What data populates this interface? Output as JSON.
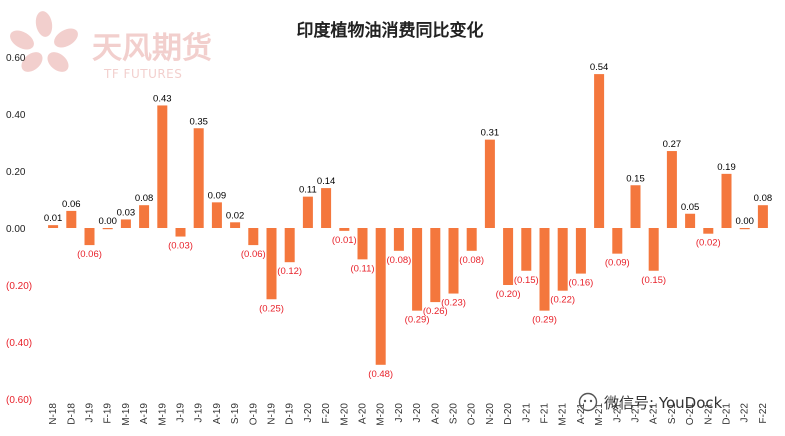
{
  "watermark": {
    "logo_cn": "天风期货",
    "logo_en": "TF FUTURES",
    "wechat": "微信号: YouDock"
  },
  "colors": {
    "bar": "#F4773D",
    "positive_label": "#000000",
    "negative_label": "#E8222B",
    "logo": "#E9A8A5"
  },
  "chart_data": {
    "type": "bar",
    "title": "印度植物油消费同比变化",
    "xlabel": "",
    "ylabel": "",
    "ylim": [
      -0.6,
      0.6
    ],
    "yticks": [
      "0.60",
      "0.40",
      "0.20",
      "0.00",
      "(0.20)",
      "(0.40)",
      "(0.60)"
    ],
    "grid": false,
    "categories": [
      "N-18",
      "D-18",
      "J-19",
      "F-19",
      "M-19",
      "A-19",
      "M-19",
      "J-19",
      "J-19",
      "A-19",
      "S-19",
      "O-19",
      "N-19",
      "D-19",
      "J-20",
      "F-20",
      "M-20",
      "A-20",
      "M-20",
      "J-20",
      "J-20",
      "A-20",
      "S-20",
      "O-20",
      "N-20",
      "D-20",
      "J-21",
      "F-21",
      "M-21",
      "A-21",
      "M-21",
      "J-21",
      "J-21",
      "A-21",
      "S-21",
      "O-21",
      "N-21",
      "D-21",
      "J-22",
      "F-22"
    ],
    "values": [
      0.01,
      0.06,
      -0.06,
      0.0,
      0.03,
      0.08,
      0.43,
      -0.03,
      0.35,
      0.09,
      0.02,
      -0.06,
      -0.25,
      -0.12,
      0.11,
      0.14,
      -0.01,
      -0.11,
      -0.48,
      -0.08,
      -0.29,
      -0.26,
      -0.23,
      -0.08,
      0.31,
      -0.2,
      -0.15,
      -0.29,
      -0.22,
      -0.16,
      0.54,
      -0.09,
      0.15,
      -0.15,
      0.27,
      0.05,
      -0.02,
      0.19,
      0.0,
      0.08
    ],
    "labels": [
      "0.01",
      "0.06",
      "(0.06)",
      "0.00",
      "0.03",
      "0.08",
      "0.43",
      "(0.03)",
      "0.35",
      "0.09",
      "0.02",
      "(0.06)",
      "(0.25)",
      "(0.12)",
      "0.11",
      "0.14",
      "(0.01)",
      "(0.11)",
      "(0.48)",
      "(0.08)",
      "(0.29)",
      "(0.26)",
      "(0.23)",
      "(0.08)",
      "0.31",
      "(0.20)",
      "(0.15)",
      "(0.29)",
      "(0.22)",
      "(0.16)",
      "0.54",
      "(0.09)",
      "0.15",
      "(0.15)",
      "0.27",
      "0.05",
      "(0.02)",
      "0.19",
      "0.00",
      "0.08"
    ]
  }
}
